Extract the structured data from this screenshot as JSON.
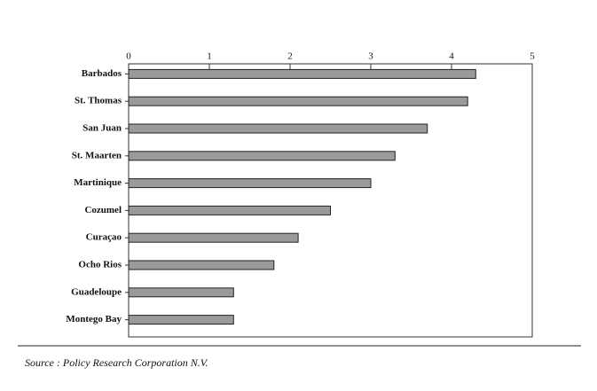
{
  "chart_data": {
    "type": "bar",
    "orientation": "horizontal",
    "categories": [
      "Barbados",
      "St. Thomas",
      "San Juan",
      "St. Maarten",
      "Martinique",
      "Cozumel",
      "Curaçao",
      "Ocho Rios",
      "Guadeloupe",
      "Montego Bay"
    ],
    "values": [
      4.3,
      4.2,
      3.7,
      3.3,
      3.0,
      2.5,
      2.1,
      1.8,
      1.3,
      1.3
    ],
    "color": "#9a9a9a",
    "xlim": [
      0,
      5
    ],
    "xticks": [
      0,
      1,
      2,
      3,
      4,
      5
    ],
    "grid": false
  },
  "source": "Source : Policy Research Corporation N.V."
}
